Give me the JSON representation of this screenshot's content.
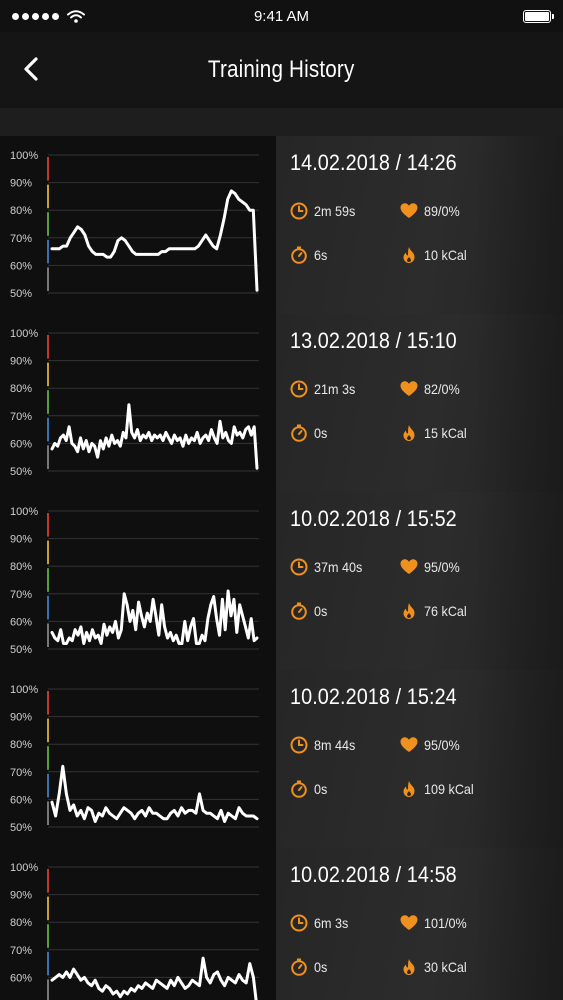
{
  "status_bar": {
    "time": "9:41 AM"
  },
  "nav": {
    "title": "Training History"
  },
  "colors": {
    "accent": "#f0901e",
    "zone_red": "#c0392b",
    "zone_yellow": "#c9a227",
    "zone_green": "#5a9e3a",
    "zone_blue": "#3a6fb0",
    "zone_gray": "#777777"
  },
  "icons": {
    "back": "chevron-left-icon",
    "duration": "clock-icon",
    "heart": "heart-icon",
    "pause": "stopwatch-icon",
    "calories": "flame-icon"
  },
  "sessions": [
    {
      "date": "14.02.2018 / 14:26",
      "duration": "2m 59s",
      "heart": "89/0%",
      "pause": "6s",
      "calories": "10 kCal",
      "chart_data": {
        "type": "line",
        "yticks": [
          "100%",
          "90%",
          "80%",
          "70%",
          "60%",
          "50%"
        ],
        "ylim": [
          50,
          100
        ],
        "values": [
          66,
          66,
          66,
          67,
          67,
          70,
          72,
          74,
          73,
          71,
          67,
          65,
          64,
          64,
          64,
          63,
          63,
          65,
          69,
          70,
          69,
          67,
          65,
          64,
          64,
          64,
          64,
          64,
          64,
          64,
          65,
          65,
          66,
          66,
          66,
          66,
          66,
          66,
          66,
          66,
          67,
          69,
          71,
          69,
          67,
          66,
          71,
          77,
          84,
          87,
          86,
          84,
          83,
          82,
          80,
          80,
          51
        ]
      }
    },
    {
      "date": "13.02.2018 / 15:10",
      "duration": "21m 3s",
      "heart": "82/0%",
      "pause": "0s",
      "calories": "15 kCal",
      "chart_data": {
        "type": "line",
        "yticks": [
          "100%",
          "90%",
          "80%",
          "70%",
          "60%",
          "50%"
        ],
        "ylim": [
          50,
          100
        ],
        "values": [
          58,
          60,
          59,
          62,
          63,
          61,
          66,
          60,
          59,
          57,
          62,
          58,
          61,
          57,
          60,
          59,
          55,
          61,
          58,
          62,
          59,
          63,
          60,
          61,
          59,
          64,
          62,
          74,
          64,
          62,
          65,
          61,
          63,
          62,
          64,
          61,
          63,
          62,
          63,
          61,
          64,
          62,
          60,
          63,
          61,
          62,
          59,
          63,
          60,
          62,
          61,
          64,
          60,
          62,
          63,
          61,
          65,
          62,
          60,
          68,
          62,
          64,
          61,
          60,
          66,
          63,
          64,
          62,
          65,
          66,
          63,
          66,
          51
        ]
      }
    },
    {
      "date": "10.02.2018 / 15:52",
      "duration": "37m 40s",
      "heart": "95/0%",
      "pause": "0s",
      "calories": "76 kCal",
      "chart_data": {
        "type": "line",
        "yticks": [
          "100%",
          "90%",
          "80%",
          "70%",
          "60%",
          "50%"
        ],
        "ylim": [
          50,
          100
        ],
        "values": [
          56,
          54,
          53,
          57,
          52,
          52,
          54,
          53,
          57,
          55,
          58,
          52,
          56,
          53,
          57,
          54,
          55,
          52,
          59,
          55,
          58,
          56,
          60,
          54,
          57,
          70,
          66,
          60,
          64,
          57,
          67,
          62,
          58,
          63,
          60,
          68,
          62,
          55,
          66,
          58,
          54,
          56,
          53,
          55,
          52,
          52,
          60,
          53,
          58,
          61,
          52,
          52,
          55,
          53,
          61,
          66,
          69,
          61,
          55,
          68,
          57,
          71,
          62,
          68,
          56,
          66,
          62,
          58,
          54,
          61,
          53,
          54
        ]
      }
    },
    {
      "date": "10.02.2018 / 15:24",
      "duration": "8m 44s",
      "heart": "95/0%",
      "pause": "0s",
      "calories": "109 kCal",
      "chart_data": {
        "type": "line",
        "yticks": [
          "100%",
          "90%",
          "80%",
          "70%",
          "60%",
          "50%"
        ],
        "ylim": [
          50,
          100
        ],
        "values": [
          59,
          54,
          62,
          72,
          62,
          56,
          58,
          54,
          56,
          53,
          57,
          56,
          52,
          55,
          54,
          57,
          55,
          54,
          53,
          55,
          57,
          56,
          55,
          53,
          55,
          56,
          54,
          57,
          55,
          55,
          54,
          53,
          53,
          55,
          56,
          54,
          57,
          55,
          56,
          56,
          55,
          62,
          56,
          55,
          55,
          54,
          53,
          56,
          52,
          55,
          54,
          53,
          57,
          55,
          54,
          54,
          54,
          53
        ]
      }
    },
    {
      "date": "10.02.2018 / 14:58",
      "duration": "6m 3s",
      "heart": "101/0%",
      "pause": "0s",
      "calories": "30 kCal",
      "chart_data": {
        "type": "line",
        "yticks": [
          "100%",
          "90%",
          "80%",
          "70%",
          "60%",
          "50%"
        ],
        "ylim": [
          50,
          100
        ],
        "values": [
          59,
          60,
          61,
          60,
          62,
          60,
          63,
          61,
          59,
          60,
          58,
          57,
          59,
          56,
          55,
          57,
          56,
          54,
          55,
          53,
          55,
          54,
          56,
          55,
          57,
          56,
          58,
          57,
          56,
          59,
          58,
          57,
          56,
          59,
          57,
          60,
          58,
          56,
          57,
          59,
          58,
          57,
          67,
          60,
          58,
          61,
          62,
          59,
          57,
          60,
          59,
          58,
          61,
          59,
          58,
          65,
          60,
          49
        ]
      }
    }
  ]
}
